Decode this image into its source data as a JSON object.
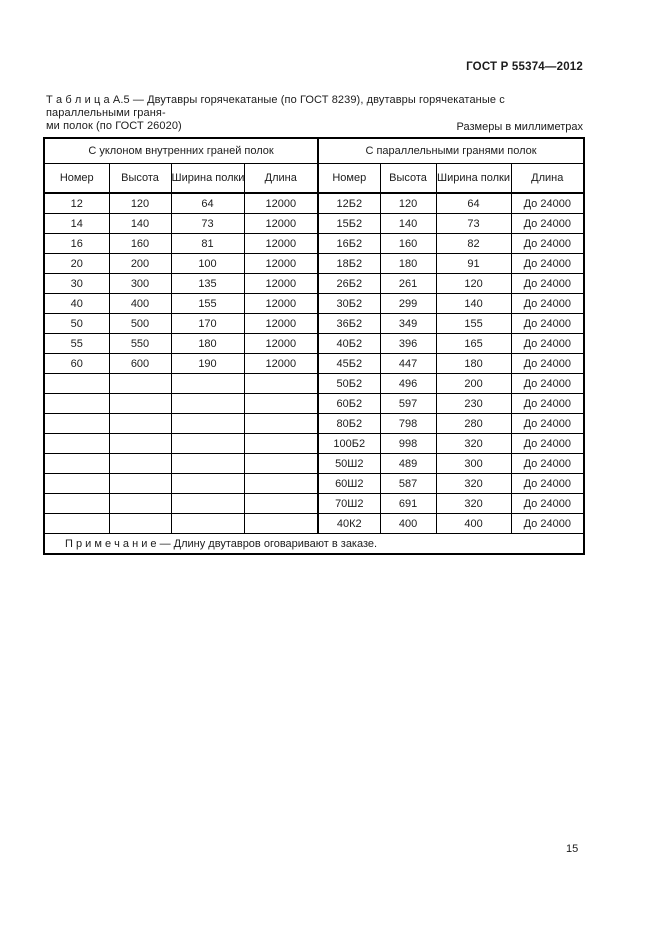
{
  "page": {
    "doc_code": "ГОСТ Р 55374—2012",
    "caption_line1": "Т а б л и ц а   А.5 — Двутавры горячекатаные (по ГОСТ 8239), двутавры горячекатаные с параллельными граня-",
    "caption_line2": "ми полок (по ГОСТ 26020)",
    "units_note": "Размеры в миллиметрах",
    "page_number": "15"
  },
  "table": {
    "group_headers": [
      "С уклоном внутренних граней полок",
      "С параллельными гранями полок"
    ],
    "column_headers": [
      "Номер",
      "Высота",
      "Ширина полки",
      "Длина",
      "Номер",
      "Высота",
      "Ширина полки",
      "Длина"
    ],
    "rows": [
      [
        "12",
        "120",
        "64",
        "12000",
        "12Б2",
        "120",
        "64",
        "До 24000"
      ],
      [
        "14",
        "140",
        "73",
        "12000",
        "15Б2",
        "140",
        "73",
        "До 24000"
      ],
      [
        "16",
        "160",
        "81",
        "12000",
        "16Б2",
        "160",
        "82",
        "До 24000"
      ],
      [
        "20",
        "200",
        "100",
        "12000",
        "18Б2",
        "180",
        "91",
        "До 24000"
      ],
      [
        "30",
        "300",
        "135",
        "12000",
        "26Б2",
        "261",
        "120",
        "До 24000"
      ],
      [
        "40",
        "400",
        "155",
        "12000",
        "30Б2",
        "299",
        "140",
        "До 24000"
      ],
      [
        "50",
        "500",
        "170",
        "12000",
        "36Б2",
        "349",
        "155",
        "До 24000"
      ],
      [
        "55",
        "550",
        "180",
        "12000",
        "40Б2",
        "396",
        "165",
        "До 24000"
      ],
      [
        "60",
        "600",
        "190",
        "12000",
        "45Б2",
        "447",
        "180",
        "До 24000"
      ],
      [
        "",
        "",
        "",
        "",
        "50Б2",
        "496",
        "200",
        "До 24000"
      ],
      [
        "",
        "",
        "",
        "",
        "60Б2",
        "597",
        "230",
        "До 24000"
      ],
      [
        "",
        "",
        "",
        "",
        "80Б2",
        "798",
        "280",
        "До 24000"
      ],
      [
        "",
        "",
        "",
        "",
        "100Б2",
        "998",
        "320",
        "До 24000"
      ],
      [
        "",
        "",
        "",
        "",
        "50Ш2",
        "489",
        "300",
        "До 24000"
      ],
      [
        "",
        "",
        "",
        "",
        "60Ш2",
        "587",
        "320",
        "До 24000"
      ],
      [
        "",
        "",
        "",
        "",
        "70Ш2",
        "691",
        "320",
        "До 24000"
      ],
      [
        "",
        "",
        "",
        "",
        "40К2",
        "400",
        "400",
        "До 24000"
      ]
    ],
    "note": "П р и м е ч а н и е — Длину двутавров оговаривают в заказе."
  }
}
